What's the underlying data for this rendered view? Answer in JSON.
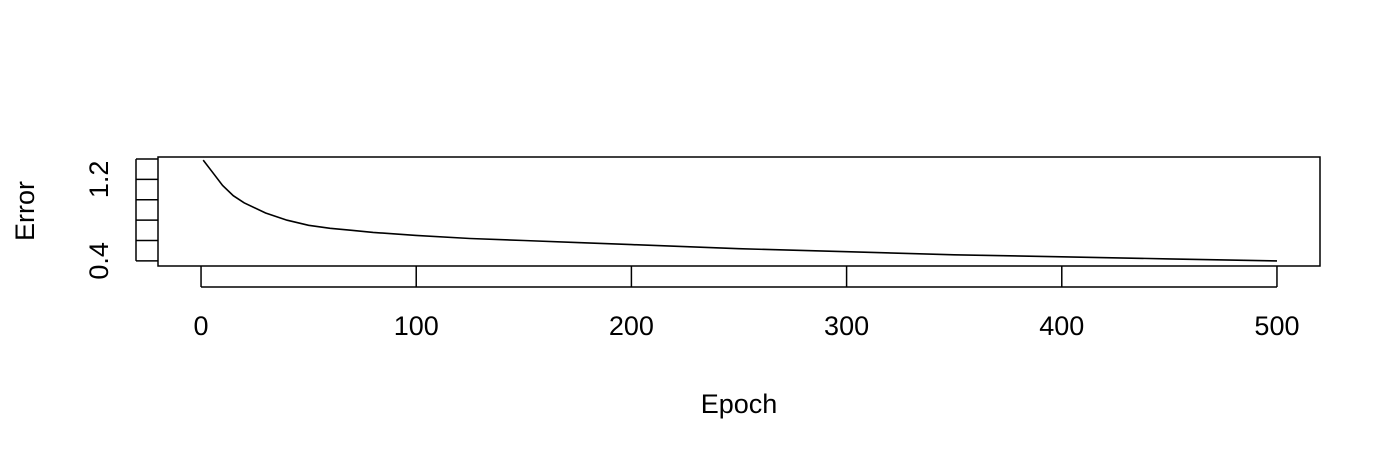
{
  "chart_data": {
    "type": "line",
    "title": "",
    "xlabel": "Epoch",
    "ylabel": "Error",
    "xlim": [
      -20,
      520
    ],
    "ylim": [
      0.35,
      1.42
    ],
    "x_ticks": [
      0,
      100,
      200,
      300,
      400,
      500
    ],
    "y_ticks": [
      0.4,
      0.6,
      0.8,
      1.0,
      1.2,
      1.4
    ],
    "y_tick_labels": [
      "0.4",
      "",
      "",
      "",
      "1.2",
      ""
    ],
    "grid": false,
    "legend": "none",
    "line_color": "#000000",
    "series": [
      {
        "x": [
          1,
          5,
          10,
          15,
          20,
          30,
          40,
          50,
          60,
          70,
          80,
          100,
          125,
          150,
          175,
          200,
          250,
          300,
          350,
          400,
          450,
          500
        ],
        "y": [
          1.39,
          1.28,
          1.14,
          1.04,
          0.97,
          0.87,
          0.8,
          0.75,
          0.72,
          0.7,
          0.68,
          0.65,
          0.62,
          0.6,
          0.58,
          0.56,
          0.52,
          0.49,
          0.46,
          0.44,
          0.42,
          0.4
        ]
      }
    ]
  }
}
